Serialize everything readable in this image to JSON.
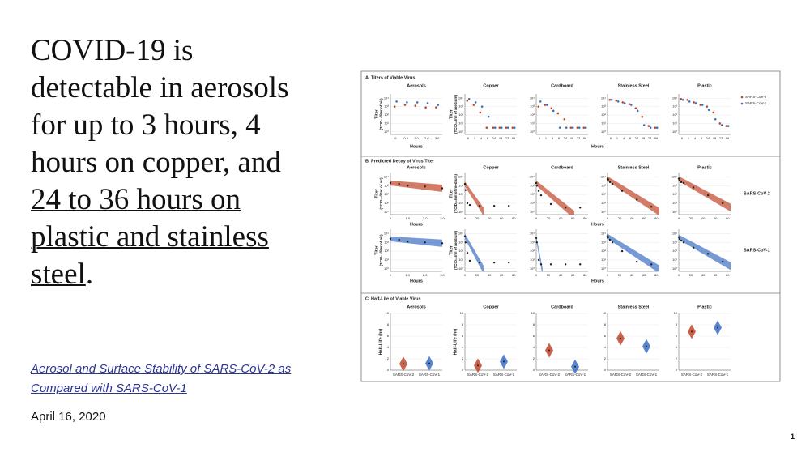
{
  "slide": {
    "heading": "COVID-19 is detectable in aerosols for up to 3 hours, 4 hours on copper, and ",
    "heading_link": "24 to 36 hours on plastic and stainless steel",
    "heading_end": ".",
    "article": "Aerosol and Surface Stability of SARS-CoV-2 as Compared with SARS-CoV-1",
    "date": "April 16, 2020",
    "page": "1"
  },
  "figure": {
    "legend": [
      {
        "name": "SARS-CoV-2",
        "color": "#c0462a"
      },
      {
        "name": "SARS-CoV-1",
        "color": "#3b6fc4"
      }
    ],
    "a": {
      "label": "A",
      "title": "Titers of Viable Virus",
      "x_label": "Hours",
      "y_title": "Titer",
      "y_units": [
        "(TCID₅₀/liter of air)",
        "(TCID₅₀/ml of medium)"
      ],
      "ylim": [
        -0.3,
        4.5
      ],
      "yticks": [
        {
          "value": 4,
          "label": "10⁴"
        },
        {
          "value": 3,
          "label": "10³"
        },
        {
          "value": 2,
          "label": "10²"
        },
        {
          "value": 1,
          "label": "10¹"
        },
        {
          "value": 0,
          "label": "10⁰"
        }
      ],
      "panels": [
        {
          "title": "Aerosols",
          "categories": [
            "0",
            "0.5",
            "1.0",
            "2.0",
            "3.0"
          ],
          "series": [
            [
              3.0,
              3.2,
              3.1,
              2.9,
              2.9
            ],
            [
              3.6,
              3.5,
              3.5,
              3.4,
              3.2
            ]
          ]
        },
        {
          "title": "Copper",
          "categories": [
            "0",
            "1",
            "4",
            "8",
            "24",
            "48",
            "72",
            "96"
          ],
          "series": [
            [
              3.7,
              3.2,
              2.3,
              0.5,
              0.5,
              0.5,
              0.5,
              0.5
            ],
            [
              3.9,
              3.5,
              3.0,
              1.8,
              0.5,
              0.5,
              0.5,
              0.5
            ]
          ]
        },
        {
          "title": "Cardboard",
          "categories": [
            "0",
            "1",
            "4",
            "8",
            "24",
            "48",
            "72",
            "96"
          ],
          "series": [
            [
              3.0,
              3.2,
              2.8,
              2.2,
              1.5,
              0.5,
              0.5,
              0.5
            ],
            [
              3.6,
              3.2,
              2.5,
              0.5,
              0.5,
              0.5,
              0.5,
              0.5
            ]
          ]
        },
        {
          "title": "Stainless Steel",
          "categories": [
            "0",
            "1",
            "4",
            "8",
            "24",
            "48",
            "72",
            "96"
          ],
          "series": [
            [
              3.8,
              3.7,
              3.5,
              3.3,
              2.8,
              1.8,
              0.7,
              0.5
            ],
            [
              3.8,
              3.6,
              3.4,
              3.2,
              2.5,
              0.8,
              0.5,
              0.5
            ]
          ]
        },
        {
          "title": "Plastic",
          "categories": [
            "0",
            "1",
            "4",
            "8",
            "24",
            "48",
            "72",
            "96"
          ],
          "series": [
            [
              3.9,
              3.8,
              3.5,
              3.2,
              3.0,
              2.3,
              1.0,
              0.7
            ],
            [
              3.8,
              3.6,
              3.4,
              3.2,
              2.6,
              1.5,
              0.8,
              0.7
            ]
          ]
        }
      ]
    },
    "b": {
      "label": "B",
      "title": "Predicted Decay of Virus Titer",
      "x_label": "Hours",
      "row_labels": [
        "SARS-CoV-2",
        "SARS-CoV-1"
      ],
      "ylim": [
        -0.3,
        4.5
      ],
      "panels": [
        {
          "title": "Aerosols",
          "xlim": [
            0,
            3
          ],
          "xticks": [
            0,
            {
              "value": 1,
              "label": "1.0"
            },
            {
              "value": 2,
              "label": "2.0"
            },
            {
              "value": 3,
              "label": "3.0"
            }
          ],
          "x": [
            0,
            0.5,
            1,
            2,
            3
          ],
          "series": [
            [
              3.3,
              3.2,
              3.0,
              2.9,
              2.7
            ],
            [
              3.4,
              3.3,
              3.1,
              3.0,
              2.9
            ]
          ]
        },
        {
          "title": "Copper",
          "xlim": [
            0,
            85
          ],
          "xticks": [
            0,
            20,
            40,
            60,
            80
          ],
          "x": [
            0,
            1,
            4,
            8,
            24,
            48,
            72
          ],
          "series": [
            [
              3.2,
              2.5,
              1.0,
              0.8,
              0.7,
              0.7,
              0.7
            ],
            [
              3.7,
              3.0,
              1.8,
              0.9,
              0.7,
              0.7,
              0.7
            ]
          ]
        },
        {
          "title": "Cardboard",
          "xlim": [
            0,
            85
          ],
          "xticks": [
            0,
            20,
            40,
            60,
            80
          ],
          "x": [
            0,
            1,
            4,
            8,
            24,
            48,
            72
          ],
          "series": [
            [
              3.3,
              3.0,
              2.4,
              1.9,
              0.9,
              0.5,
              0.5
            ],
            [
              3.5,
              3.0,
              1.0,
              0.5,
              0.5,
              0.5,
              0.5
            ]
          ]
        },
        {
          "title": "Stainless Steel",
          "xlim": [
            0,
            85
          ],
          "xticks": [
            0,
            20,
            40,
            60,
            80
          ],
          "x": [
            0,
            1,
            4,
            8,
            24,
            48,
            72
          ],
          "series": [
            [
              3.8,
              3.7,
              3.4,
              3.2,
              2.4,
              1.4,
              0.6
            ],
            [
              3.7,
              3.6,
              3.3,
              3.0,
              2.0,
              0.8,
              0.5
            ]
          ]
        },
        {
          "title": "Plastic",
          "xlim": [
            0,
            85
          ],
          "xticks": [
            0,
            20,
            40,
            60,
            80
          ],
          "x": [
            0,
            1,
            4,
            8,
            24,
            48,
            72
          ],
          "series": [
            [
              3.8,
              3.6,
              3.4,
              3.3,
              2.8,
              1.9,
              1.0
            ],
            [
              3.6,
              3.4,
              3.2,
              3.0,
              2.4,
              1.7,
              0.8
            ]
          ]
        }
      ]
    },
    "c": {
      "label": "C",
      "title": "Half-Life of Viable Virus",
      "y_label": "Half-Life (hr)",
      "ylim": [
        0,
        10
      ],
      "yticks": [
        0,
        2,
        4,
        6,
        8,
        10
      ],
      "panels": [
        {
          "title": "Aerosols",
          "values": [
            1.1,
            1.2
          ]
        },
        {
          "title": "Copper",
          "values": [
            0.8,
            1.5
          ]
        },
        {
          "title": "Cardboard",
          "values": [
            3.5,
            0.6
          ]
        },
        {
          "title": "Stainless Steel",
          "values": [
            5.6,
            4.2
          ]
        },
        {
          "title": "Plastic",
          "values": [
            6.8,
            7.5
          ]
        }
      ]
    }
  }
}
